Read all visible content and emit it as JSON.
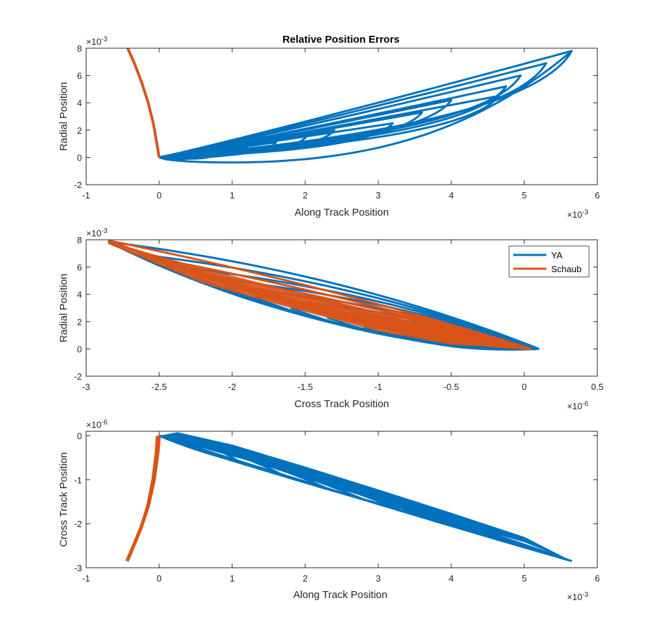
{
  "figure": {
    "title": "Relative Position Errors",
    "legend_labels": [
      "YA",
      "Schaub"
    ]
  },
  "colors": {
    "ya": "#0072BD",
    "schaub": "#D95319",
    "axis": "#262626",
    "background": "#ffffff"
  },
  "chart_data": [
    {
      "type": "line",
      "title": "Relative Position Errors",
      "xlabel": "Along Track Position",
      "ylabel": "Radial Position",
      "xlim": [
        -1,
        6
      ],
      "ylim": [
        -2,
        8
      ],
      "xticks": [
        "-1",
        "0",
        "1",
        "2",
        "3",
        "4",
        "5",
        "6"
      ],
      "yticks": [
        "-2",
        "0",
        "2",
        "4",
        "6",
        "8"
      ],
      "x_exponent": "×10",
      "x_exponent_power": "-3",
      "y_exponent": "×10",
      "y_exponent_power": "-3",
      "grid": false,
      "legend": null,
      "series": [
        {
          "name": "YA",
          "loops": [
            {
              "tip_x": 0.38,
              "tip_y": 0.02
            },
            {
              "tip_x": 0.8,
              "tip_y": 0.35
            },
            {
              "tip_x": 1.2,
              "tip_y": 0.75
            },
            {
              "tip_x": 1.6,
              "tip_y": 1.1
            },
            {
              "tip_x": 2.02,
              "tip_y": 1.55
            },
            {
              "tip_x": 2.4,
              "tip_y": 2.0
            },
            {
              "tip_x": 3.2,
              "tip_y": 2.5
            },
            {
              "tip_x": 3.6,
              "tip_y": 3.3
            },
            {
              "tip_x": 4.0,
              "tip_y": 4.2
            },
            {
              "tip_x": 4.65,
              "tip_y": 4.5
            },
            {
              "tip_x": 4.75,
              "tip_y": 5.2
            },
            {
              "tip_x": 4.95,
              "tip_y": 6.0
            },
            {
              "tip_x": 5.3,
              "tip_y": 6.9
            },
            {
              "tip_x": 5.65,
              "tip_y": 7.8
            }
          ],
          "bottom_min_x": 0.9,
          "bottom_min_y": -0.45
        },
        {
          "name": "Schaub",
          "x": [
            0,
            -0.03,
            -0.08,
            -0.15,
            -0.24,
            -0.34,
            -0.43
          ],
          "y": [
            0,
            1.0,
            2.5,
            4.0,
            5.5,
            6.9,
            8.0
          ]
        }
      ]
    },
    {
      "type": "line",
      "title": "",
      "xlabel": "Cross Track Position",
      "ylabel": "Radial Position",
      "xlim": [
        -3,
        0.5
      ],
      "ylim": [
        -2,
        8
      ],
      "xticks": [
        "-3",
        "-2.5",
        "-2",
        "-1.5",
        "-1",
        "-0.5",
        "0",
        "0.5"
      ],
      "yticks": [
        "-2",
        "0",
        "2",
        "4",
        "6",
        "8"
      ],
      "x_exponent": "×10",
      "x_exponent_power": "-6",
      "y_exponent": "×10",
      "y_exponent_power": "-3",
      "grid": false,
      "legend": "top-right",
      "series": [
        {
          "name": "YA",
          "loops": [
            {
              "x": -2.85,
              "y": 7.85
            },
            {
              "x": -2.65,
              "y": 6.95
            },
            {
              "x": -2.45,
              "y": 6.1
            },
            {
              "x": -2.25,
              "y": 5.3
            },
            {
              "x": -2.05,
              "y": 4.55
            },
            {
              "x": -1.85,
              "y": 3.8
            },
            {
              "x": -1.6,
              "y": 3.0
            },
            {
              "x": -1.35,
              "y": 2.3
            },
            {
              "x": -1.1,
              "y": 1.6
            },
            {
              "x": -0.85,
              "y": 1.0
            }
          ],
          "apex": {
            "x": 0.1,
            "y": 0.0
          },
          "bottom_min_x": -0.2,
          "bottom_min_y": -0.45
        },
        {
          "name": "Schaub",
          "loops": [
            {
              "x": -2.85,
              "y": 7.95
            },
            {
              "x": -2.6,
              "y": 6.8
            },
            {
              "x": -2.35,
              "y": 5.8
            },
            {
              "x": -2.1,
              "y": 4.9
            },
            {
              "x": -1.85,
              "y": 4.0
            },
            {
              "x": -1.6,
              "y": 3.2
            },
            {
              "x": -1.35,
              "y": 2.5
            },
            {
              "x": -1.1,
              "y": 1.8
            },
            {
              "x": -0.85,
              "y": 1.2
            },
            {
              "x": -0.6,
              "y": 0.7
            }
          ],
          "apex": {
            "x": 0.05,
            "y": 0.0
          }
        }
      ]
    },
    {
      "type": "line",
      "title": "",
      "xlabel": "Along Track Position",
      "ylabel": "Cross Track Position",
      "xlim": [
        -1,
        6
      ],
      "ylim": [
        -3,
        0.1
      ],
      "xticks": [
        "-1",
        "0",
        "1",
        "2",
        "3",
        "4",
        "5",
        "6"
      ],
      "yticks": [
        "-3",
        "-2",
        "-1",
        "0"
      ],
      "x_exponent": "×10",
      "x_exponent_power": "-3",
      "y_exponent": "×10",
      "y_exponent_power": "-6",
      "grid": false,
      "legend": null,
      "series": [
        {
          "name": "YA",
          "loops": [
            {
              "x": 5.65,
              "y": -2.85
            },
            {
              "x": 5.3,
              "y": -2.68
            },
            {
              "x": 4.95,
              "y": -2.5
            },
            {
              "x": 4.65,
              "y": -2.35
            },
            {
              "x": 4.35,
              "y": -2.2
            },
            {
              "x": 4.05,
              "y": -2.05
            },
            {
              "x": 3.7,
              "y": -1.88
            },
            {
              "x": 3.3,
              "y": -1.68
            },
            {
              "x": 2.8,
              "y": -1.45
            },
            {
              "x": 2.3,
              "y": -1.2
            },
            {
              "x": 1.7,
              "y": -0.9
            },
            {
              "x": 1.1,
              "y": -0.6
            }
          ],
          "apex": {
            "x": 0.0,
            "y": 0.0
          },
          "top_max_x": 0.25,
          "top_max_y": 0.08
        },
        {
          "name": "Schaub",
          "x": [
            0,
            -0.02,
            -0.07,
            -0.15,
            -0.25,
            -0.35,
            -0.44
          ],
          "y": [
            0,
            -0.4,
            -1.0,
            -1.6,
            -2.1,
            -2.5,
            -2.85
          ]
        }
      ]
    }
  ]
}
